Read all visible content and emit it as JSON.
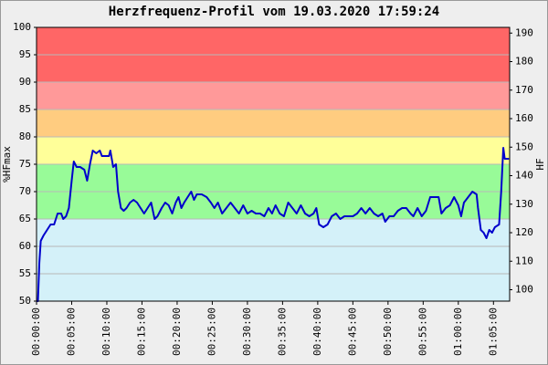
{
  "chart_data": {
    "type": "line",
    "title": "Herzfrequenz-Profil vom 19.03.2020 17:59:24",
    "y_label": "%HFmax",
    "y2_label": "HF",
    "color": "#0000cc",
    "zones": [
      {
        "from": 50,
        "to": 65,
        "color": "#d4f1f9"
      },
      {
        "from": 65,
        "to": 75,
        "color": "#98fb98"
      },
      {
        "from": 75,
        "to": 80,
        "color": "#ffff99"
      },
      {
        "from": 80,
        "to": 85,
        "color": "#ffcc80"
      },
      {
        "from": 85,
        "to": 90,
        "color": "#ff9999"
      },
      {
        "from": 90,
        "to": 100,
        "color": "#ff6666"
      }
    ],
    "xlim": [
      0,
      67.3
    ],
    "xticks": [
      {
        "value": 0,
        "label": "00:00:00"
      },
      {
        "value": 5,
        "label": "00:05:00"
      },
      {
        "value": 10,
        "label": "00:10:00"
      },
      {
        "value": 15,
        "label": "00:15:00"
      },
      {
        "value": 20,
        "label": "00:20:00"
      },
      {
        "value": 25,
        "label": "00:25:00"
      },
      {
        "value": 30,
        "label": "00:30:00"
      },
      {
        "value": 35,
        "label": "00:35:00"
      },
      {
        "value": 40,
        "label": "00:40:00"
      },
      {
        "value": 45,
        "label": "00:45:00"
      },
      {
        "value": 50,
        "label": "00:50:00"
      },
      {
        "value": 55,
        "label": "00:55:00"
      },
      {
        "value": 60,
        "label": "01:00:00"
      },
      {
        "value": 65,
        "label": "01:05:00"
      }
    ],
    "ylim": [
      50,
      100
    ],
    "yticks": [
      50,
      55,
      60,
      65,
      70,
      75,
      80,
      85,
      90,
      95,
      100
    ],
    "y2lim": [
      96,
      192
    ],
    "y2ticks": [
      100,
      110,
      120,
      130,
      140,
      150,
      160,
      170,
      180,
      190
    ],
    "grid": true,
    "x": [
      0,
      0.2,
      0.4,
      0.6,
      1,
      1.5,
      2,
      2.5,
      3,
      3.5,
      3.8,
      4.2,
      4.6,
      5,
      5.3,
      5.7,
      6.2,
      6.8,
      7.2,
      7.6,
      8,
      8.5,
      9,
      9.3,
      9.8,
      10.3,
      10.5,
      10.9,
      11.3,
      11.6,
      12,
      12.4,
      12.8,
      13.3,
      13.8,
      14.3,
      14.8,
      15.3,
      15.8,
      16.3,
      16.8,
      17.2,
      17.8,
      18.3,
      18.8,
      19.3,
      19.8,
      20.2,
      20.6,
      21,
      21.5,
      22,
      22.4,
      22.8,
      23.5,
      24.2,
      24.8,
      25.3,
      25.8,
      26.4,
      27,
      27.6,
      28.2,
      28.8,
      29.4,
      30,
      30.6,
      31.2,
      31.8,
      32.4,
      33,
      33.5,
      34,
      34.6,
      35.2,
      35.8,
      36.4,
      37,
      37.6,
      38.2,
      38.8,
      39.4,
      39.8,
      40.2,
      40.8,
      41.4,
      42,
      42.6,
      43.2,
      43.8,
      44.4,
      45,
      45.6,
      46.2,
      46.8,
      47.4,
      48,
      48.6,
      49.2,
      49.6,
      50.2,
      50.8,
      51.4,
      52,
      52.6,
      53.2,
      53.6,
      54.2,
      54.8,
      55.4,
      56,
      56.6,
      57.2,
      57.6,
      58.2,
      58.8,
      59.4,
      60,
      60.4,
      60.8,
      61.4,
      62,
      62.6,
      62.8,
      63.2,
      63.6,
      64,
      64.4,
      64.8,
      65.2,
      65.8,
      66.1,
      66.4,
      66.6,
      67,
      67.2
    ],
    "values": [
      50,
      50,
      57,
      61,
      62,
      63,
      64,
      64,
      66,
      66,
      65,
      65.5,
      67,
      72,
      75.5,
      74.5,
      74.5,
      74,
      72,
      75,
      77.5,
      77,
      77.5,
      76.5,
      76.5,
      76.5,
      77.5,
      74.5,
      75,
      70,
      67,
      66.5,
      67,
      68,
      68.5,
      68,
      67,
      66,
      67,
      68,
      65,
      65.5,
      67,
      68,
      67.5,
      66,
      68,
      69,
      67,
      68,
      69,
      70,
      68.5,
      69.5,
      69.5,
      69,
      68,
      67,
      68,
      66,
      67,
      68,
      67,
      66,
      67.5,
      66,
      66.5,
      66,
      66,
      65.5,
      67,
      66,
      67.5,
      66,
      65.5,
      68,
      67,
      66,
      67.5,
      66,
      65.5,
      66,
      67,
      64,
      63.5,
      64,
      65.5,
      66,
      65,
      65.5,
      65.5,
      65.5,
      66,
      67,
      66,
      67,
      66,
      65.5,
      66,
      64.5,
      65.5,
      65.5,
      66.5,
      67,
      67,
      66,
      65.5,
      67,
      65.5,
      66.5,
      69,
      69,
      69,
      66,
      67,
      67.5,
      69,
      67.5,
      65.5,
      68,
      69,
      70,
      69.5,
      67,
      63,
      62.5,
      61.5,
      63,
      62.5,
      63.5,
      64,
      70,
      78,
      76,
      76,
      76
    ]
  }
}
